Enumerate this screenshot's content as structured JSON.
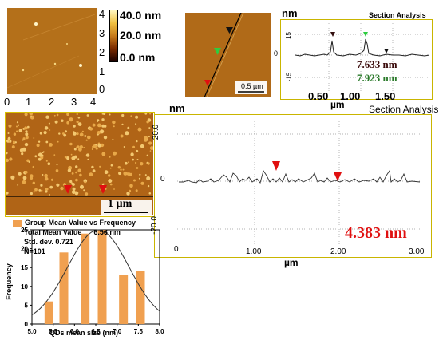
{
  "panel_a": {
    "x_ticks": [
      "0",
      "1",
      "2",
      "3",
      "4"
    ],
    "y_ticks": [
      "4",
      "3",
      "2",
      "1",
      "0"
    ],
    "colorbar": {
      "max_label": "40.0 nm",
      "mid_label": "20.0 nm",
      "min_label": "0.0 nm",
      "colors": [
        "#1a0000",
        "#7a2a00",
        "#c67a1a",
        "#f0c040",
        "#fff7c0"
      ]
    }
  },
  "panel_b": {
    "scale_bar": "0.5 µm",
    "section": {
      "unit": "nm",
      "title": "Section Analysis",
      "y_ticks": [
        "15",
        "0",
        "-15"
      ],
      "x_ticks": [
        "0.50",
        "1.00",
        "1.50"
      ],
      "xlabel": "µm",
      "measure_1": "7.633 nm",
      "measure_2": "7.923 nm",
      "measure_1_color": "#3a0a0a",
      "measure_2_color": "#2a7a2a"
    }
  },
  "panel_c": {
    "scale_bar": "1 µm",
    "marker_color": "#e01010"
  },
  "panel_d": {
    "unit": "nm",
    "title": "Section Analysis",
    "y_ticks": [
      "20.0",
      "0",
      "-20.0"
    ],
    "x_ticks": [
      "0",
      "1.00",
      "2.00",
      "3.00"
    ],
    "xlabel": "µm",
    "measure": "4.383 nm",
    "measure_color": "#e01010"
  },
  "chart_data": {
    "type": "bar",
    "legend": "Group Mean Value vs Frequency",
    "stats": [
      "Total Mean Value      6.56 nm",
      "Std. dev.  0.721",
      "N=101"
    ],
    "xlabel": "QDs mean size  (nm)",
    "ylabel": "Frequency",
    "xlim": [
      5.0,
      8.0
    ],
    "ylim": [
      0,
      25
    ],
    "x_ticks": [
      "5.0",
      "5.5",
      "6.0",
      "6.5",
      "7.0",
      "7.5",
      "8.0"
    ],
    "y_ticks": [
      "0",
      "5",
      "10",
      "15",
      "20",
      "25"
    ],
    "x": [
      5.4,
      5.75,
      6.25,
      6.65,
      7.15,
      7.55
    ],
    "values": [
      6,
      19,
      24,
      25,
      13,
      14
    ],
    "bar_color": "#f0a050",
    "gaussian": {
      "mean": 6.56,
      "sd": 0.721,
      "peak": 25
    }
  }
}
